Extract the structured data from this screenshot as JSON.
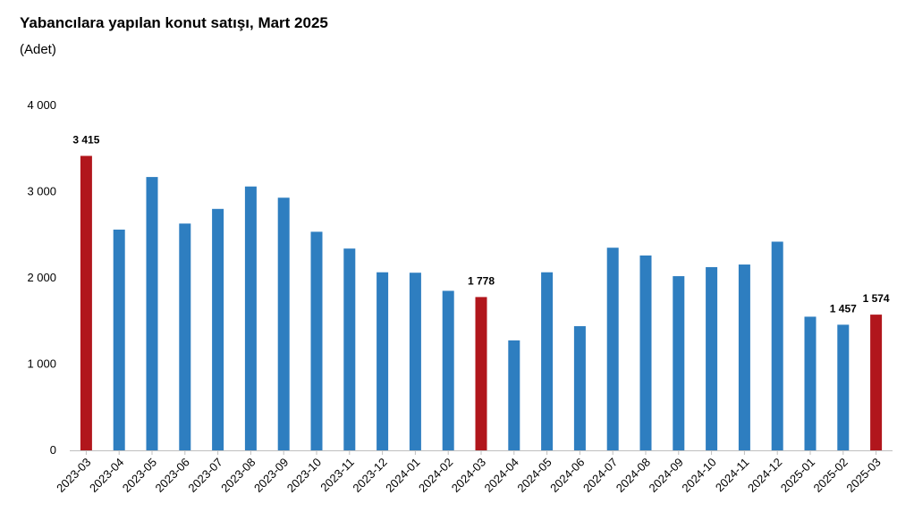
{
  "title": "Yabancılara yapılan konut satışı, Mart 2025",
  "subtitle": "(Adet)",
  "colors": {
    "normal": "#2E7EC0",
    "highlight": "#B1161C",
    "axis": "#bfbfbf"
  },
  "chart_data": {
    "type": "bar",
    "categories": [
      "2023-03",
      "2023-04",
      "2023-05",
      "2023-06",
      "2023-07",
      "2023-08",
      "2023-09",
      "2023-10",
      "2023-11",
      "2023-12",
      "2024-01",
      "2024-02",
      "2024-03",
      "2024-04",
      "2024-05",
      "2024-06",
      "2024-07",
      "2024-08",
      "2024-09",
      "2024-10",
      "2024-11",
      "2024-12",
      "2025-01",
      "2025-02",
      "2025-03"
    ],
    "values": [
      3415,
      2560,
      3170,
      2630,
      2800,
      3060,
      2930,
      2535,
      2340,
      2065,
      2060,
      1850,
      1778,
      1275,
      2065,
      1440,
      2350,
      2260,
      2020,
      2125,
      2155,
      2420,
      1550,
      1457,
      1574
    ],
    "highlighted": [
      "2023-03",
      "2024-03",
      "2025-03"
    ],
    "data_labels": [
      {
        "category": "2023-03",
        "text": "3 415"
      },
      {
        "category": "2024-03",
        "text": "1 778"
      },
      {
        "category": "2025-02",
        "text": "1 457"
      },
      {
        "category": "2025-03",
        "text": "1 574"
      }
    ],
    "y_ticks": [
      {
        "value": 0,
        "label": "0"
      },
      {
        "value": 1000,
        "label": "1 000"
      },
      {
        "value": 2000,
        "label": "2 000"
      },
      {
        "value": 3000,
        "label": "3 000"
      },
      {
        "value": 4000,
        "label": "4 000"
      }
    ],
    "ylim": [
      0,
      4000
    ],
    "grid": false,
    "legend": "none"
  }
}
